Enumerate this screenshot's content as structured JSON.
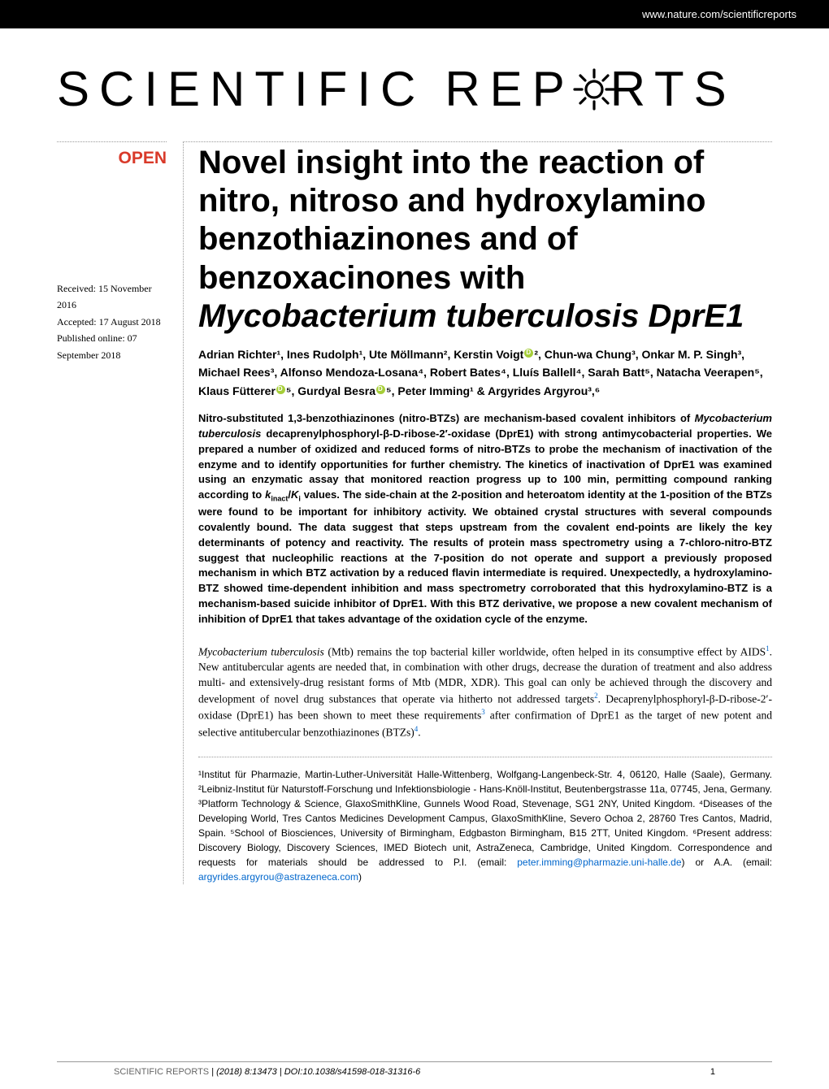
{
  "header": {
    "url": "www.nature.com/scientificreports"
  },
  "journal": {
    "logo_part1": "SCIENTIFIC",
    "logo_part2_a": "REP",
    "logo_part2_b": "RTS"
  },
  "badge": {
    "open": "OPEN"
  },
  "dates": {
    "received": "Received: 15 November 2016",
    "accepted": "Accepted: 17 August 2018",
    "published": "Published online: 07 September 2018"
  },
  "title_line1": "Novel insight into the reaction of nitro, nitroso and hydroxylamino benzothiazinones and of benzoxacinones with",
  "title_italic": "Mycobacterium tuberculosis DprE1",
  "authors_html": "Adrian Richter¹, Ines Rudolph¹, Ute Möllmann², Kerstin Voigt{orcid}², Chun-wa Chung³, Onkar M. P. Singh³, Michael Rees³, Alfonso Mendoza-Losana⁴, Robert Bates⁴, Lluís Ballell⁴, Sarah Batt⁵, Natacha Veerapen⁵, Klaus Fütterer{orcid}⁵, Gurdyal Besra{orcid}⁵, Peter Imming¹ & Argyrides Argyrou³,⁶",
  "abstract": "Nitro-substituted 1,3-benzothiazinones (nitro-BTZs) are mechanism-based covalent inhibitors of {ital}Mycobacterium tuberculosis{/ital} decaprenylphosphoryl-β-D-ribose-2′-oxidase (DprE1) with strong antimycobacterial properties. We prepared a number of oxidized and reduced forms of nitro-BTZs to probe the mechanism of inactivation of the enzyme and to identify opportunities for further chemistry. The kinetics of inactivation of DprE1 was examined using an enzymatic assay that monitored reaction progress up to 100 min, permitting compound ranking according to {ital}k{/ital}{sub}inact{/sub}/{ital}K{/ital}{sub}i{/sub} values. The side-chain at the 2-position and heteroatom identity at the 1-position of the BTZs were found to be important for inhibitory activity. We obtained crystal structures with several compounds covalently bound. The data suggest that steps upstream from the covalent end-points are likely the key determinants of potency and reactivity. The results of protein mass spectrometry using a 7-chloro-nitro-BTZ suggest that nucleophilic reactions at the 7-position do not operate and support a previously proposed mechanism in which BTZ activation by a reduced flavin intermediate is required. Unexpectedly, a hydroxylamino-BTZ showed time-dependent inhibition and mass spectrometry corroborated that this hydroxylamino-BTZ is a mechanism-based suicide inhibitor of DprE1. With this BTZ derivative, we propose a new covalent mechanism of inhibition of DprE1 that takes advantage of the oxidation cycle of the enzyme.",
  "body_para": "{ital}Mycobacterium tuberculosis{/ital} (Mtb) remains the top bacterial killer worldwide, often helped in its consumptive effect by AIDS{sup}1{/sup}. New antitubercular agents are needed that, in combination with other drugs, decrease the duration of treatment and also address multi- and extensively-drug resistant forms of Mtb (MDR, XDR). This goal can only be achieved through the discovery and development of novel drug substances that operate via hitherto not addressed targets{sup}2{/sup}. Decaprenylphosphoryl-β-D-ribose-2′-oxidase (DprE1) has been shown to meet these requirements{sup}3{/sup} after confirmation of DprE1 as the target of new potent and selective antitubercular benzothiazinones (BTZs){sup}4{/sup}.",
  "affiliations": "¹Institut für Pharmazie, Martin-Luther-Universität Halle-Wittenberg, Wolfgang-Langenbeck-Str. 4, 06120, Halle (Saale), Germany. ²Leibniz-Institut für Naturstoff-Forschung und Infektionsbiologie - Hans-Knöll-Institut, Beutenbergstrasse 11a, 07745, Jena, Germany. ³Platform Technology & Science, GlaxoSmithKline, Gunnels Wood Road, Stevenage, SG1 2NY, United Kingdom. ⁴Diseases of the Developing World, Tres Cantos Medicines Development Campus, GlaxoSmithKline, Severo Ochoa 2, 28760 Tres Cantos, Madrid, Spain. ⁵School of Biosciences, University of Birmingham, Edgbaston Birmingham, B15 2TT, United Kingdom. ⁶Present address: Discovery Biology, Discovery Sciences, IMED Biotech unit, AstraZeneca, Cambridge, United Kingdom. Correspondence and requests for materials should be addressed to P.I. (email: ",
  "email1": "peter.imming@pharmazie.uni-halle.de",
  "affil_between": ") or A.A. (email: ",
  "email2": "argyrides.argyrou@astrazeneca.com",
  "affil_end": ")",
  "footer": {
    "journal": "SCIENTIFIC REPORTS",
    "sep": " | ",
    "citation": "(2018) 8:13473 | DOI:10.1038/s41598-018-31316-6",
    "page": "1"
  },
  "colors": {
    "header_bg": "#000000",
    "open_red": "#d93a2a",
    "link_blue": "#0066cc",
    "orcid_green": "#a6ce39",
    "dotted_border": "#999999"
  }
}
